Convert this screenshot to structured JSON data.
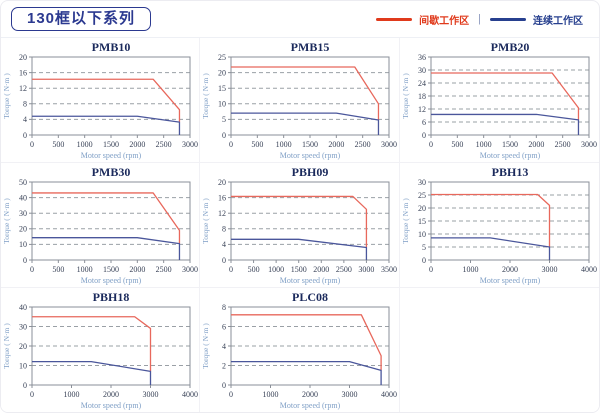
{
  "header": {
    "series_title": "130框以下系列",
    "legend_separator": "|",
    "legend": [
      {
        "name": "intermittent-zone",
        "label": "间歇工作区",
        "color": "#e03a1c"
      },
      {
        "name": "continuous-zone",
        "label": "连续工作区",
        "color": "#27408f"
      }
    ]
  },
  "colors": {
    "intermittent": "#e8685c",
    "continuous": "#4a569b",
    "plot_border": "#8a8f98",
    "gridline": "#9aa0a6",
    "tick_text": "#3a4358",
    "chart_title": "#1b2a5c",
    "axis_label": "#7f9fc6"
  },
  "chart_data": [
    {
      "type": "line",
      "title": "PMB10",
      "xlabel": "Motor speed (rpm)",
      "ylabel": "Torque ( N·m )",
      "xlim": [
        0,
        3000
      ],
      "xticks": [
        0,
        500,
        1000,
        1500,
        2000,
        2500,
        3000
      ],
      "ylim": [
        0,
        20
      ],
      "yticks": [
        0,
        4,
        8,
        12,
        16,
        20
      ],
      "grid": "horizontal-dashed",
      "legend_position": "none",
      "series": [
        {
          "name": "间歇工作区",
          "color": "intermittent",
          "points": [
            [
              0,
              14.3
            ],
            [
              2300,
              14.3
            ],
            [
              2800,
              6.5
            ],
            [
              2800,
              3.3
            ]
          ]
        },
        {
          "name": "连续工作区",
          "color": "continuous",
          "points": [
            [
              0,
              4.8
            ],
            [
              2000,
              4.8
            ],
            [
              2800,
              3.3
            ],
            [
              2800,
              0
            ]
          ]
        }
      ]
    },
    {
      "type": "line",
      "title": "PMB15",
      "xlabel": "Motor speed (rpm)",
      "ylabel": "Torque ( N·m )",
      "xlim": [
        0,
        3000
      ],
      "xticks": [
        0,
        500,
        1000,
        1500,
        2000,
        2500,
        3000
      ],
      "ylim": [
        0,
        25
      ],
      "yticks": [
        0,
        5,
        10,
        15,
        20,
        25
      ],
      "grid": "horizontal-dashed",
      "legend_position": "none",
      "series": [
        {
          "name": "间歇工作区",
          "color": "intermittent",
          "points": [
            [
              0,
              21.8
            ],
            [
              2350,
              21.8
            ],
            [
              2800,
              10
            ],
            [
              2800,
              4.8
            ]
          ]
        },
        {
          "name": "连续工作区",
          "color": "continuous",
          "points": [
            [
              0,
              7
            ],
            [
              2000,
              7
            ],
            [
              2800,
              4.8
            ],
            [
              2800,
              0
            ]
          ]
        }
      ]
    },
    {
      "type": "line",
      "title": "PMB20",
      "xlabel": "Motor speed (rpm)",
      "ylabel": "Torque ( N·m )",
      "xlim": [
        0,
        3000
      ],
      "xticks": [
        0,
        500,
        1000,
        1500,
        2000,
        2500,
        3000
      ],
      "ylim": [
        0,
        36
      ],
      "yticks": [
        0,
        6,
        12,
        18,
        24,
        30,
        36
      ],
      "grid": "horizontal-dashed",
      "legend_position": "none",
      "series": [
        {
          "name": "间歇工作区",
          "color": "intermittent",
          "points": [
            [
              0,
              28.6
            ],
            [
              2300,
              28.6
            ],
            [
              2800,
              12.5
            ],
            [
              2800,
              7
            ]
          ]
        },
        {
          "name": "连续工作区",
          "color": "continuous",
          "points": [
            [
              0,
              9.5
            ],
            [
              2000,
              9.5
            ],
            [
              2800,
              7
            ],
            [
              2800,
              0
            ]
          ]
        }
      ]
    },
    {
      "type": "line",
      "title": "PMB30",
      "xlabel": "Motor speed (rpm)",
      "ylabel": "Torque ( N·m )",
      "xlim": [
        0,
        3000
      ],
      "xticks": [
        0,
        500,
        1000,
        1500,
        2000,
        2500,
        3000
      ],
      "ylim": [
        0,
        50
      ],
      "yticks": [
        0,
        10,
        20,
        30,
        40,
        50
      ],
      "grid": "horizontal-dashed",
      "legend_position": "none",
      "series": [
        {
          "name": "间歇工作区",
          "color": "intermittent",
          "points": [
            [
              0,
              43
            ],
            [
              2300,
              43
            ],
            [
              2800,
              19
            ],
            [
              2800,
              10.5
            ]
          ]
        },
        {
          "name": "连续工作区",
          "color": "continuous",
          "points": [
            [
              0,
              14.3
            ],
            [
              2000,
              14.3
            ],
            [
              2800,
              10.5
            ],
            [
              2800,
              0
            ]
          ]
        }
      ]
    },
    {
      "type": "line",
      "title": "PBH09",
      "xlabel": "Motor speed (rpm)",
      "ylabel": "Torque ( N·m )",
      "xlim": [
        0,
        3500
      ],
      "xticks": [
        0,
        500,
        1000,
        1500,
        2000,
        2500,
        3000,
        3500
      ],
      "ylim": [
        0,
        20
      ],
      "yticks": [
        0,
        4,
        8,
        12,
        16,
        20
      ],
      "grid": "horizontal-dashed",
      "legend_position": "none",
      "series": [
        {
          "name": "间歇工作区",
          "color": "intermittent",
          "points": [
            [
              0,
              16.3
            ],
            [
              2700,
              16.3
            ],
            [
              3000,
              13
            ],
            [
              3000,
              3.2
            ]
          ]
        },
        {
          "name": "连续工作区",
          "color": "continuous",
          "points": [
            [
              0,
              5.3
            ],
            [
              1500,
              5.3
            ],
            [
              3000,
              3.2
            ],
            [
              3000,
              0
            ]
          ]
        }
      ]
    },
    {
      "type": "line",
      "title": "PBH13",
      "xlabel": "Motor speed (rpm)",
      "ylabel": "Torque ( N·m )",
      "xlim": [
        0,
        4000
      ],
      "xticks": [
        0,
        1000,
        2000,
        3000,
        4000
      ],
      "ylim": [
        0,
        30
      ],
      "yticks": [
        0,
        5,
        10,
        15,
        20,
        25,
        30
      ],
      "grid": "horizontal-dashed",
      "legend_position": "none",
      "series": [
        {
          "name": "间歇工作区",
          "color": "intermittent",
          "points": [
            [
              0,
              25.2
            ],
            [
              2700,
              25.2
            ],
            [
              3000,
              21
            ],
            [
              3000,
              5
            ]
          ]
        },
        {
          "name": "连续工作区",
          "color": "continuous",
          "points": [
            [
              0,
              8.5
            ],
            [
              1500,
              8.5
            ],
            [
              3000,
              5
            ],
            [
              3000,
              0
            ]
          ]
        }
      ]
    },
    {
      "type": "line",
      "title": "PBH18",
      "xlabel": "Motor speed (rpm)",
      "ylabel": "Torque ( N·m )",
      "xlim": [
        0,
        4000
      ],
      "xticks": [
        0,
        1000,
        2000,
        3000,
        4000
      ],
      "ylim": [
        0,
        40
      ],
      "yticks": [
        0,
        10,
        20,
        30,
        40
      ],
      "grid": "horizontal-dashed",
      "legend_position": "none",
      "series": [
        {
          "name": "间歇工作区",
          "color": "intermittent",
          "points": [
            [
              0,
              35
            ],
            [
              2600,
              35
            ],
            [
              3000,
              29
            ],
            [
              3000,
              7
            ]
          ]
        },
        {
          "name": "连续工作区",
          "color": "continuous",
          "points": [
            [
              0,
              12
            ],
            [
              1500,
              12
            ],
            [
              3000,
              7
            ],
            [
              3000,
              0
            ]
          ]
        }
      ]
    },
    {
      "type": "line",
      "title": "PLC08",
      "xlabel": "Motor speed (rpm)",
      "ylabel": "Torque ( N·m )",
      "xlim": [
        0,
        4000
      ],
      "xticks": [
        0,
        1000,
        2000,
        3000,
        4000
      ],
      "ylim": [
        0,
        8
      ],
      "yticks": [
        0,
        2,
        4,
        6,
        8
      ],
      "grid": "horizontal-dashed",
      "legend_position": "none",
      "series": [
        {
          "name": "间歇工作区",
          "color": "intermittent",
          "points": [
            [
              0,
              7.2
            ],
            [
              3300,
              7.2
            ],
            [
              3800,
              3
            ],
            [
              3800,
              1.5
            ]
          ]
        },
        {
          "name": "连续工作区",
          "color": "continuous",
          "points": [
            [
              0,
              2.4
            ],
            [
              3000,
              2.4
            ],
            [
              3800,
              1.5
            ],
            [
              3800,
              0
            ]
          ]
        }
      ]
    }
  ]
}
